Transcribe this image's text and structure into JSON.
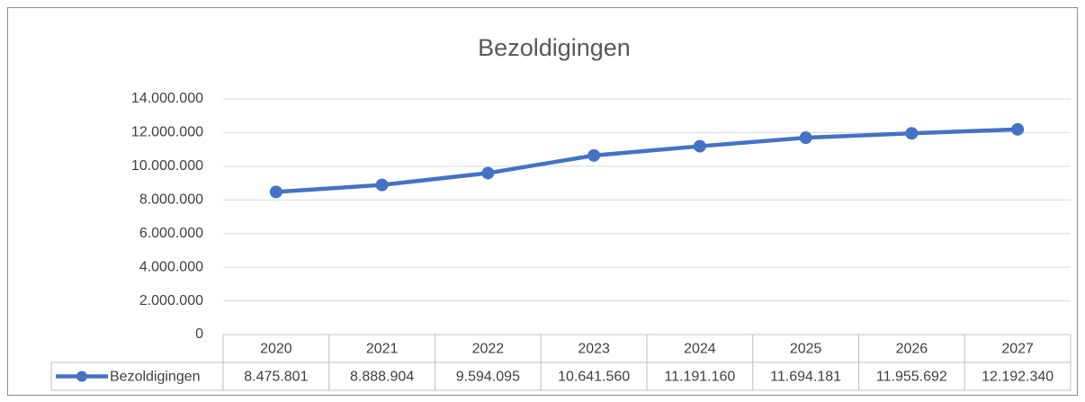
{
  "chart_data": {
    "type": "line",
    "title": "Bezoldigingen",
    "categories": [
      "2020",
      "2021",
      "2022",
      "2023",
      "2024",
      "2025",
      "2026",
      "2027"
    ],
    "series": [
      {
        "name": "Bezoldigingen",
        "color": "#4472c4",
        "values": [
          8475801,
          8888904,
          9594095,
          10641560,
          11191160,
          11694181,
          11955692,
          12192340
        ],
        "value_labels": [
          "8.475.801",
          "8.888.904",
          "9.594.095",
          "10.641.560",
          "11.191.160",
          "11.694.181",
          "11.955.692",
          "12.192.340"
        ]
      }
    ],
    "ylim": [
      0,
      14000000
    ],
    "yticks": [
      0,
      {
        "value": 2000000,
        "label": "2.000.000"
      },
      {
        "value": 4000000,
        "label": "4.000.000"
      },
      {
        "value": 6000000,
        "label": "6.000.000"
      },
      {
        "value": 8000000,
        "label": "8.000.000"
      },
      {
        "value": 10000000,
        "label": "10.000.000"
      },
      {
        "value": 12000000,
        "label": "12.000.000"
      },
      {
        "value": 14000000,
        "label": "14.000.000"
      }
    ],
    "grid": true,
    "data_table": true
  }
}
